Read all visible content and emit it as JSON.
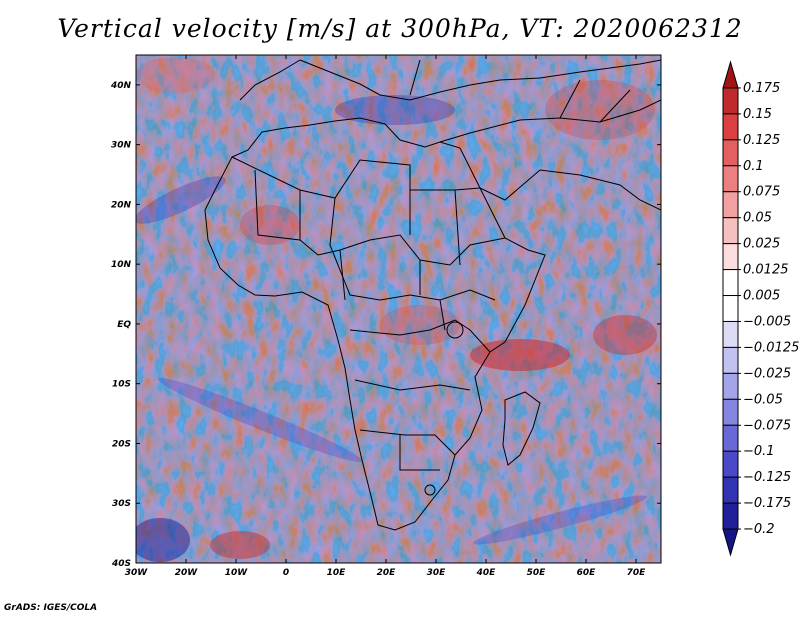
{
  "title": "Vertical velocity [m/s] at 300hPa, VT: 2020062312",
  "credit": "GrADS: IGES/COLA",
  "map": {
    "lon_range": [
      -30,
      75
    ],
    "lat_range": [
      -40,
      45
    ],
    "x_ticks": [
      {
        "lon": -30,
        "label": "30W"
      },
      {
        "lon": -20,
        "label": "20W"
      },
      {
        "lon": -10,
        "label": "10W"
      },
      {
        "lon": 0,
        "label": "0"
      },
      {
        "lon": 10,
        "label": "10E"
      },
      {
        "lon": 20,
        "label": "20E"
      },
      {
        "lon": 30,
        "label": "30E"
      },
      {
        "lon": 40,
        "label": "40E"
      },
      {
        "lon": 50,
        "label": "50E"
      },
      {
        "lon": 60,
        "label": "60E"
      },
      {
        "lon": 70,
        "label": "70E"
      }
    ],
    "y_ticks": [
      {
        "lat": 40,
        "label": "40N"
      },
      {
        "lat": 30,
        "label": "30N"
      },
      {
        "lat": 20,
        "label": "20N"
      },
      {
        "lat": 10,
        "label": "10N"
      },
      {
        "lat": 0,
        "label": "EQ"
      },
      {
        "lat": -10,
        "label": "10S"
      },
      {
        "lat": -20,
        "label": "20S"
      },
      {
        "lat": -30,
        "label": "30S"
      },
      {
        "lat": -40,
        "label": "40S"
      }
    ]
  },
  "colorbar": {
    "labels": [
      "0.175",
      "0.15",
      "0.125",
      "0.1",
      "0.075",
      "0.05",
      "0.025",
      "0.0125",
      "0.005",
      "−0.005",
      "−0.0125",
      "−0.025",
      "−0.05",
      "−0.075",
      "−0.1",
      "−0.125",
      "−0.175",
      "−0.2"
    ],
    "colors": [
      "#a01416",
      "#c02a2c",
      "#d9403f",
      "#e46060",
      "#ec8080",
      "#f2a0a0",
      "#f7c0c0",
      "#fbdddd",
      "#ffffff",
      "#ffffff",
      "#dcdcf6",
      "#c2c2f0",
      "#a4a4e8",
      "#8686e0",
      "#6868d6",
      "#4a4ac8",
      "#3232b4",
      "#20209a",
      "#141486"
    ]
  }
}
